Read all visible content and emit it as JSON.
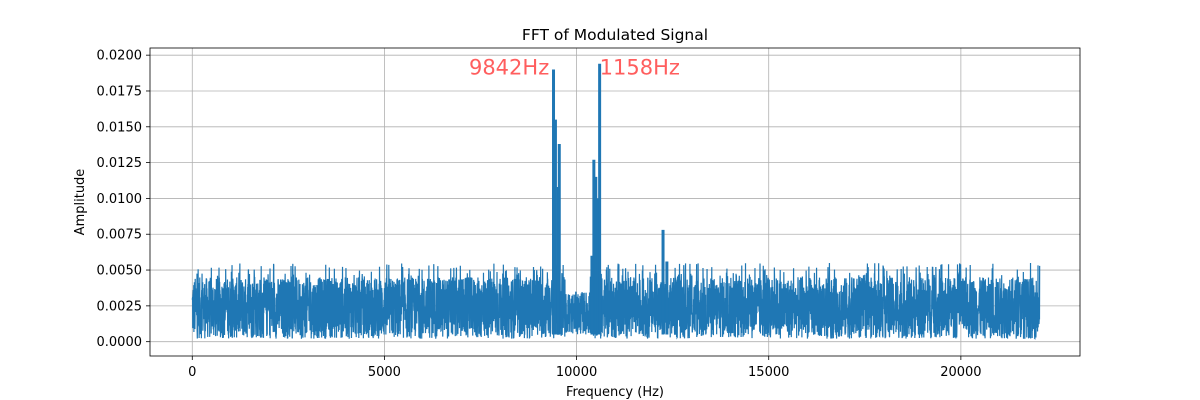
{
  "chart_data": {
    "type": "line",
    "title": "FFT of Modulated Signal",
    "xlabel": "Frequency (Hz)",
    "ylabel": "Amplitude",
    "xlim": [
      -1100,
      23100
    ],
    "ylim": [
      -0.001,
      0.0205
    ],
    "xticks": [
      0,
      5000,
      10000,
      15000,
      20000
    ],
    "xtick_labels": [
      "0",
      "5000",
      "10000",
      "15000",
      "20000"
    ],
    "yticks": [
      0.0,
      0.0025,
      0.005,
      0.0075,
      0.01,
      0.0125,
      0.015,
      0.0175,
      0.02
    ],
    "ytick_labels": [
      "0.0000",
      "0.0025",
      "0.0050",
      "0.0075",
      "0.0100",
      "0.0125",
      "0.0150",
      "0.0175",
      "0.0200"
    ],
    "grid": true,
    "series_color": "#1f77b4",
    "annotation_color": "#ff4d4d",
    "annotations": [
      {
        "text": "9842Hz",
        "x": 7200,
        "y": 0.0192
      },
      {
        "text": "1158Hz",
        "x": 10600,
        "y": 0.0192
      }
    ],
    "noise_floor": {
      "x_range": [
        0,
        22050
      ],
      "min": 0.0002,
      "max": 0.0045,
      "peak_max": 0.0055
    },
    "peaks": [
      {
        "x": 9400,
        "y": 0.019
      },
      {
        "x": 9450,
        "y": 0.0155
      },
      {
        "x": 9550,
        "y": 0.0138
      },
      {
        "x": 9520,
        "y": 0.0108
      },
      {
        "x": 10450,
        "y": 0.0127
      },
      {
        "x": 10500,
        "y": 0.0115
      },
      {
        "x": 10550,
        "y": 0.01
      },
      {
        "x": 10600,
        "y": 0.0194
      },
      {
        "x": 10400,
        "y": 0.006
      },
      {
        "x": 12250,
        "y": 0.0078
      },
      {
        "x": 12350,
        "y": 0.0056
      }
    ]
  }
}
